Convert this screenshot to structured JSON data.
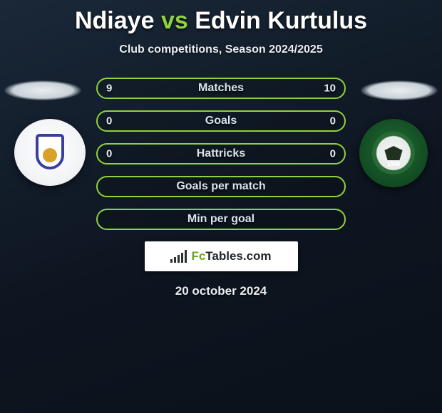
{
  "colors": {
    "accent": "#8fd23f",
    "pill_border": "#8fd23f",
    "text_primary": "#ffffff",
    "text_stat": "#e6eef4",
    "bg_gradient_from": "#1a2838",
    "bg_gradient_to": "#0a111a",
    "brand_green": "#6aa420"
  },
  "typography": {
    "title_fontsize": 34,
    "subtitle_fontsize": 16,
    "stat_label_fontsize": 16,
    "stat_value_fontsize": 15,
    "date_fontsize": 17
  },
  "title": {
    "player1": "Ndiaye",
    "vs": "vs",
    "player2": "Edvin Kurtulus"
  },
  "subtitle": "Club competitions, Season 2024/2025",
  "clubs": {
    "left": {
      "name": "anderlecht",
      "badge_bg": "#ffffff",
      "crest_border": "#3a3f9e"
    },
    "right": {
      "name": "ludogorets",
      "badge_bg": "#1f6d34",
      "year": "1945"
    }
  },
  "stats": {
    "pill_height": 30,
    "pill_radius": 15,
    "row_gap": 16,
    "rows": [
      {
        "label": "Matches",
        "left": "9",
        "right": "10"
      },
      {
        "label": "Goals",
        "left": "0",
        "right": "0"
      },
      {
        "label": "Hattricks",
        "left": "0",
        "right": "0"
      },
      {
        "label": "Goals per match",
        "left": "",
        "right": ""
      },
      {
        "label": "Min per goal",
        "left": "",
        "right": ""
      }
    ]
  },
  "brand": {
    "prefix": "Fc",
    "rest": "Tables.com",
    "bar_heights": [
      5,
      8,
      11,
      14,
      18
    ]
  },
  "date": "20 october 2024"
}
